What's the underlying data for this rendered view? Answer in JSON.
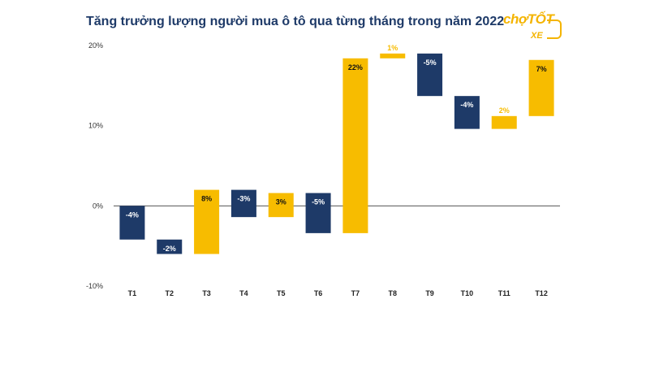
{
  "title": "Tăng trưởng lượng người mua ô tô qua từng tháng trong năm 2022",
  "logo": {
    "main": "chợTỐT",
    "sub": "XE"
  },
  "colors": {
    "navy": "#1e3a68",
    "yellow": "#f7bc00",
    "title": "#1e3a68"
  },
  "chart_data": {
    "type": "waterfall",
    "title": "Tăng trưởng lượng người mua ô tô qua từng tháng trong năm 2022",
    "xlabel": "",
    "ylabel": "",
    "ylim": [
      -10,
      20
    ],
    "yticks": [
      -10,
      0,
      10,
      20
    ],
    "ytick_labels": [
      "-10%",
      "0%",
      "10%",
      "20%"
    ],
    "zero_line": true,
    "categories": [
      "T1",
      "T2",
      "T3",
      "T4",
      "T5",
      "T6",
      "T7",
      "T8",
      "T9",
      "T10",
      "T11",
      "T12"
    ],
    "labels": [
      "-4%",
      "-2%",
      "8%",
      "-3%",
      "3%",
      "-5%",
      "22%",
      "1%",
      "-5%",
      "-4%",
      "2%",
      "7%"
    ],
    "bars": [
      {
        "start": 0.0,
        "end": -4.2,
        "color": "navy"
      },
      {
        "start": -4.2,
        "end": -6.0,
        "color": "navy"
      },
      {
        "start": -6.0,
        "end": 2.0,
        "color": "yellow"
      },
      {
        "start": 2.0,
        "end": -1.4,
        "color": "navy"
      },
      {
        "start": -1.4,
        "end": 1.6,
        "color": "yellow"
      },
      {
        "start": 1.6,
        "end": -3.4,
        "color": "navy"
      },
      {
        "start": -3.4,
        "end": 18.4,
        "color": "yellow"
      },
      {
        "start": 18.4,
        "end": 19.0,
        "color": "yellow"
      },
      {
        "start": 19.0,
        "end": 13.7,
        "color": "navy"
      },
      {
        "start": 13.7,
        "end": 9.6,
        "color": "navy"
      },
      {
        "start": 9.6,
        "end": 11.2,
        "color": "yellow"
      },
      {
        "start": 11.2,
        "end": 18.2,
        "color": "yellow"
      }
    ]
  }
}
